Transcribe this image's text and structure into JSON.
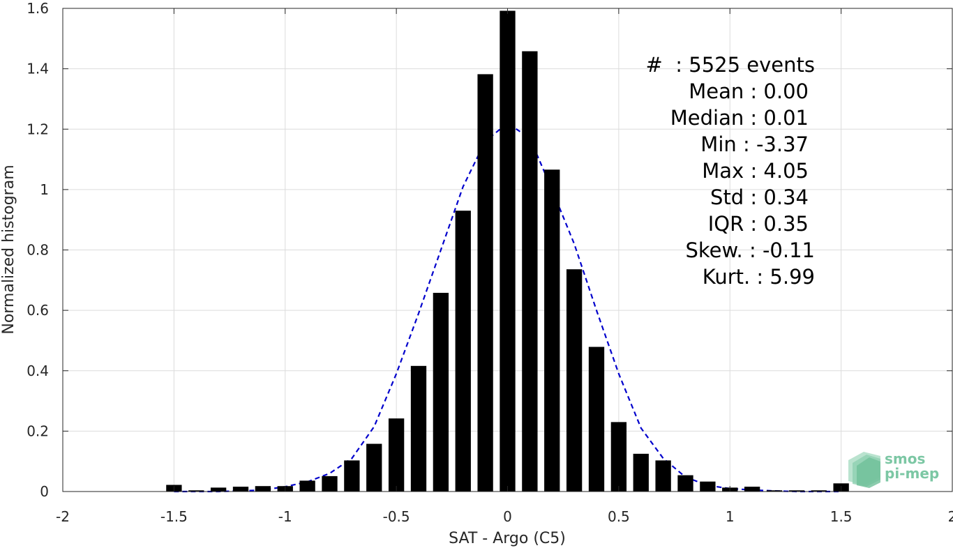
{
  "chart_data": {
    "type": "bar",
    "title": "",
    "xlabel": "SAT - Argo (C5)",
    "ylabel": "Normalized histogram",
    "xlim": [
      -2,
      2
    ],
    "ylim": [
      0,
      1.6
    ],
    "grid": true,
    "xticks": [
      -2,
      -1.5,
      -1,
      -0.5,
      0,
      0.5,
      1,
      1.5,
      2
    ],
    "xtick_labels": [
      "-2",
      "-1.5",
      "-1",
      "-0.5",
      "0",
      "0.5",
      "1",
      "1.5",
      "2"
    ],
    "yticks": [
      0,
      0.2,
      0.4,
      0.6,
      0.8,
      1,
      1.2,
      1.4,
      1.6
    ],
    "ytick_labels": [
      "0",
      "0.2",
      "0.4",
      "0.6",
      "0.8",
      "1",
      "1.2",
      "1.4",
      "1.6"
    ],
    "bar_color": "#000000",
    "bars": {
      "x": [
        -1.5,
        -1.4,
        -1.3,
        -1.2,
        -1.1,
        -1.0,
        -0.9,
        -0.8,
        -0.7,
        -0.6,
        -0.5,
        -0.4,
        -0.3,
        -0.2,
        -0.1,
        0.0,
        0.1,
        0.2,
        0.3,
        0.4,
        0.5,
        0.6,
        0.7,
        0.8,
        0.9,
        1.0,
        1.1,
        1.2,
        1.3,
        1.4,
        1.5
      ],
      "values": [
        0.022,
        0.004,
        0.013,
        0.016,
        0.018,
        0.018,
        0.036,
        0.051,
        0.103,
        0.158,
        0.242,
        0.416,
        0.658,
        0.93,
        1.382,
        1.592,
        1.458,
        1.066,
        0.736,
        0.479,
        0.23,
        0.125,
        0.103,
        0.054,
        0.033,
        0.013,
        0.016,
        0.004,
        0.004,
        0.004,
        0.027
      ]
    },
    "fit_curve": {
      "style": "dashed",
      "color": "#0000cc",
      "x": [
        -1.5,
        -1.4,
        -1.3,
        -1.2,
        -1.1,
        -1.0,
        -0.9,
        -0.8,
        -0.7,
        -0.6,
        -0.5,
        -0.4,
        -0.3,
        -0.2,
        -0.1,
        0.0,
        0.1,
        0.2,
        0.3,
        0.4,
        0.5,
        0.6,
        0.7,
        0.8,
        0.9,
        1.0,
        1.1,
        1.2,
        1.3,
        1.4,
        1.5
      ],
      "y": [
        0.0,
        0.0,
        0.0,
        0.002,
        0.005,
        0.016,
        0.032,
        0.06,
        0.11,
        0.215,
        0.39,
        0.59,
        0.8,
        1.01,
        1.16,
        1.22,
        1.17,
        1.0,
        0.82,
        0.6,
        0.39,
        0.21,
        0.11,
        0.048,
        0.02,
        0.01,
        0.005,
        0.002,
        0.0,
        0.0,
        0.0
      ]
    },
    "stats_box": {
      "events_line": "#  : 5525 events",
      "lines": [
        "Mean : 0.00",
        "Median : 0.01",
        "Min : -3.37",
        "Max : 4.05",
        "Std : 0.34",
        "IQR : 0.35",
        "Skew. : -0.11",
        "Kurt. : 5.99"
      ]
    }
  },
  "logo": {
    "line1": "smos",
    "line2": "pi-mep",
    "color": "#7cc7a4"
  }
}
